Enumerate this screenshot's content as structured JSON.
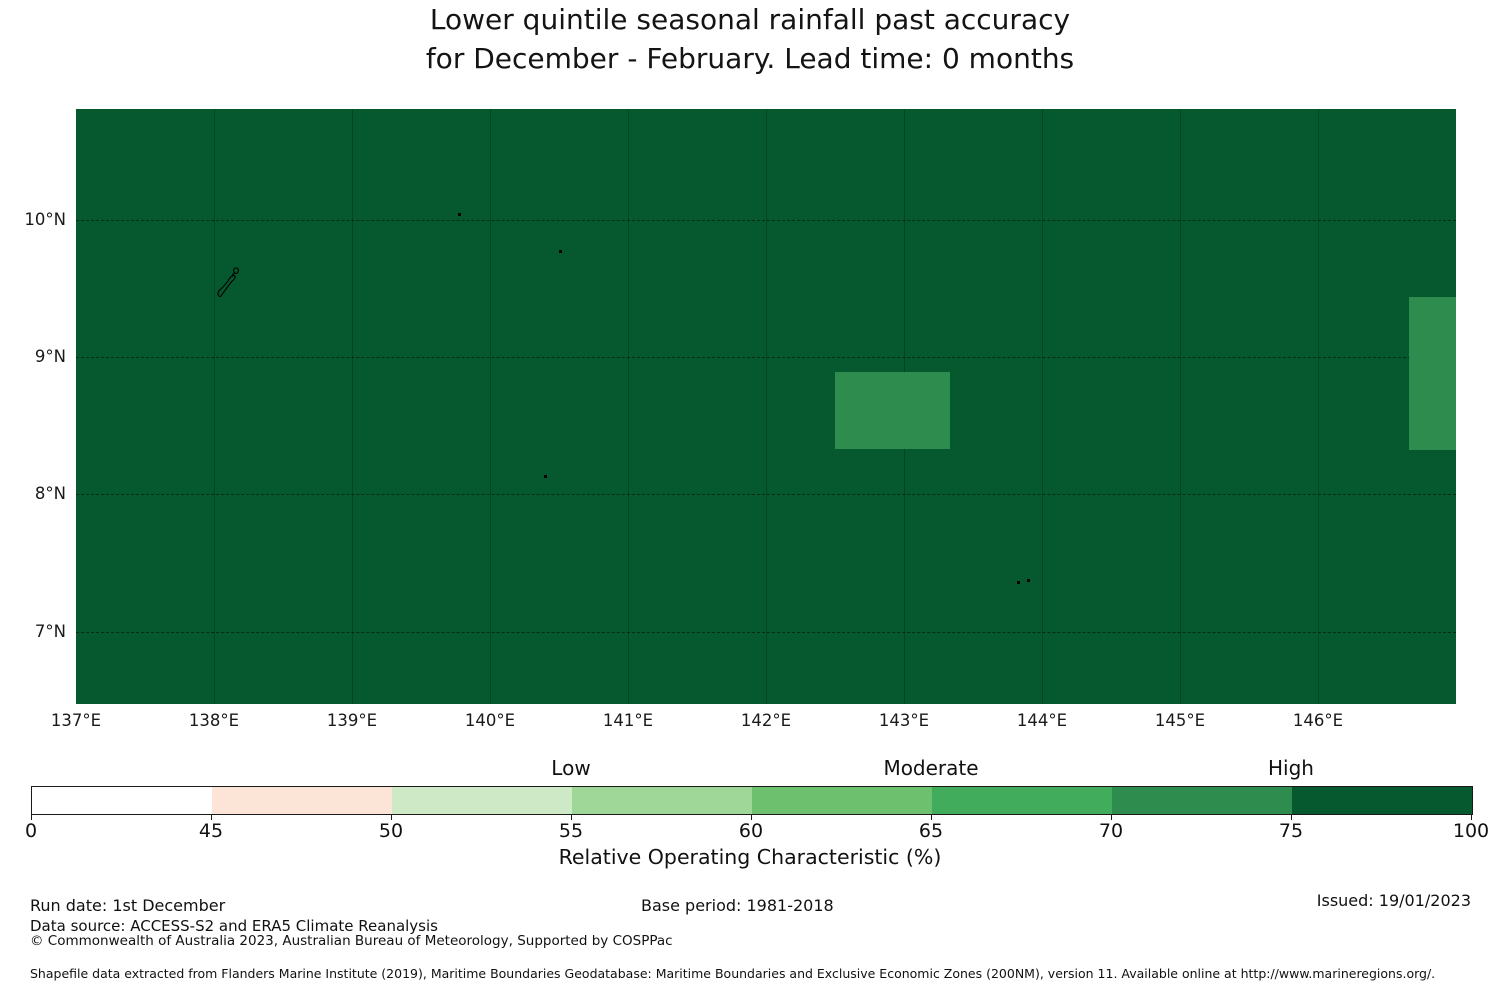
{
  "title": {
    "line1": "Lower quintile seasonal rainfall past accuracy",
    "line2": "for December - February. Lead time: 0 months"
  },
  "chart_data": {
    "type": "heatmap",
    "description": "Map of past forecast accuracy (ROC %) for lower quintile seasonal rainfall over the Yap (FSM) region. Entire shown EEZ area falls in the 75-100 bin except two cell groups in the 70-75 bin.",
    "x_axis": {
      "ticks": [
        137,
        138,
        139,
        140,
        141,
        142,
        143,
        144,
        145,
        146
      ],
      "suffix": "°E",
      "range": [
        137,
        147
      ]
    },
    "y_axis": {
      "ticks": [
        10,
        9,
        8,
        7
      ],
      "suffix": "°N",
      "range": [
        6.47,
        10.81
      ]
    },
    "background_bin": {
      "range": "75-100",
      "color": "#06592e"
    },
    "cells": [
      {
        "lon": [
          142.5,
          143.33
        ],
        "lat": [
          8.33,
          8.89
        ],
        "bin": "70-75",
        "color": "#2e8c4e"
      },
      {
        "lon": [
          146.66,
          147.0
        ],
        "lat": [
          8.32,
          9.44
        ],
        "bin": "70-75",
        "color": "#2e8c4e"
      }
    ],
    "islands": {
      "outline": {
        "name": "yap-island",
        "lon": 138.1,
        "lat": 9.5
      },
      "dots": [
        {
          "lon": 139.78,
          "lat": 10.04
        },
        {
          "lon": 140.51,
          "lat": 9.77
        },
        {
          "lon": 140.4,
          "lat": 8.13
        },
        {
          "lon": 143.83,
          "lat": 7.36
        },
        {
          "lon": 143.9,
          "lat": 7.37
        }
      ]
    },
    "colorbar": {
      "category_labels": [
        {
          "text": "Low",
          "tick": 55
        },
        {
          "text": "Moderate",
          "tick": 65
        },
        {
          "text": "High",
          "tick": 75
        }
      ],
      "ticks": [
        0,
        45,
        50,
        55,
        60,
        65,
        70,
        75,
        100
      ],
      "segments": [
        {
          "range": [
            0,
            45
          ],
          "color": "#ffffff"
        },
        {
          "range": [
            45,
            50
          ],
          "color": "#fce4d6"
        },
        {
          "range": [
            50,
            55
          ],
          "color": "#cde9c5"
        },
        {
          "range": [
            55,
            60
          ],
          "color": "#9fd798"
        },
        {
          "range": [
            60,
            65
          ],
          "color": "#6cc06e"
        },
        {
          "range": [
            65,
            70
          ],
          "color": "#42ac5d"
        },
        {
          "range": [
            70,
            75
          ],
          "color": "#2e8c4e"
        },
        {
          "range": [
            75,
            100
          ],
          "color": "#06592e"
        }
      ],
      "axis_label": "Relative Operating Characteristic (%)"
    }
  },
  "footer": {
    "run_date": "Run date: 1st December",
    "base_period": "Base period: 1981-2018",
    "issued": "Issued: 19/01/2023",
    "data_source": "Data source: ACCESS-S2 and ERA5 Climate Reanalysis",
    "copyright": "© Commonwealth of Australia 2023, Australian Bureau of Meteorology, Supported by COSPPac",
    "shapefile": "Shapefile data extracted from Flanders Marine Institute (2019), Maritime Boundaries Geodatabase: Maritime Boundaries and Exclusive Economic Zones (200NM), version 11. Available online at http://www.marineregions.org/."
  }
}
